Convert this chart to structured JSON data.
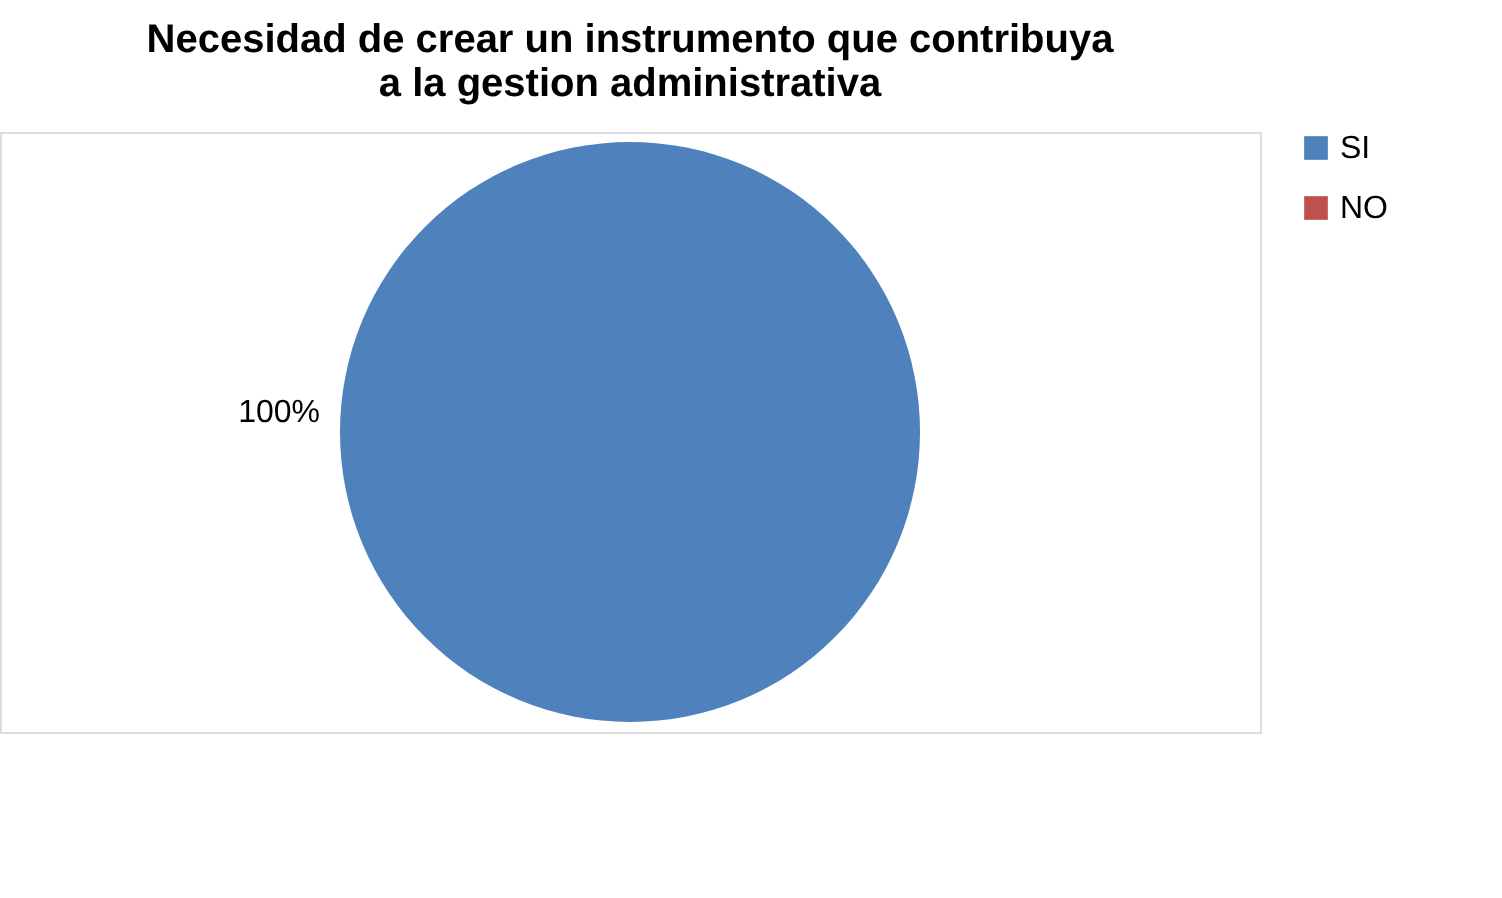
{
  "chart_data": {
    "type": "pie",
    "title": "Necesidad de crear un instrumento que contribuya\na la gestion administrativa",
    "categories": [
      "SI",
      "NO"
    ],
    "values": [
      100,
      0
    ],
    "colors": [
      "#4f81bd",
      "#c0504d"
    ],
    "value_labels": [
      "100%",
      null
    ],
    "legend": "right"
  }
}
